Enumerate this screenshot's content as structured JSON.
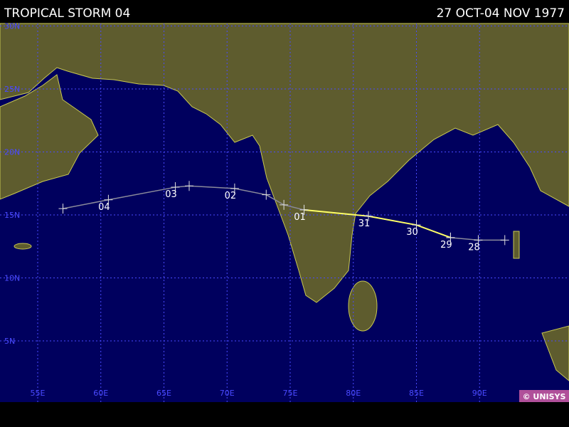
{
  "header": {
    "title": "TROPICAL STORM 04",
    "dates": "27 OCT-04 NOV 1977"
  },
  "map": {
    "lat_ticks": [
      {
        "value": 30,
        "label": "30N"
      },
      {
        "value": 25,
        "label": "25N"
      },
      {
        "value": 20,
        "label": "20N"
      },
      {
        "value": 15,
        "label": "15N"
      },
      {
        "value": 10,
        "label": "10N"
      },
      {
        "value": 5,
        "label": "5N"
      }
    ],
    "lon_ticks": [
      {
        "value": 55,
        "label": "55E"
      },
      {
        "value": 60,
        "label": "60E"
      },
      {
        "value": 65,
        "label": "65E"
      },
      {
        "value": 70,
        "label": "70E"
      },
      {
        "value": 75,
        "label": "75E"
      },
      {
        "value": 80,
        "label": "80E"
      },
      {
        "value": 85,
        "label": "85E"
      },
      {
        "value": 90,
        "label": "90E"
      }
    ],
    "track": [
      {
        "color": "#8a8a9a",
        "points": [
          {
            "lon": 92.0,
            "lat": 13.0
          },
          {
            "lon": 89.9,
            "lat": 13.0,
            "label": "28"
          },
          {
            "lon": 87.7,
            "lat": 13.2,
            "label": "29"
          }
        ]
      },
      {
        "color": "#ffff66",
        "points": [
          {
            "lon": 87.7,
            "lat": 13.2
          },
          {
            "lon": 85.0,
            "lat": 14.2,
            "label": "30"
          },
          {
            "lon": 81.2,
            "lat": 14.9,
            "label": "31"
          },
          {
            "lon": 76.1,
            "lat": 15.4,
            "label": "01"
          }
        ]
      },
      {
        "color": "#8a8a9a",
        "points": [
          {
            "lon": 76.1,
            "lat": 15.4
          },
          {
            "lon": 74.5,
            "lat": 15.8
          },
          {
            "lon": 73.1,
            "lat": 16.6
          },
          {
            "lon": 70.6,
            "lat": 17.1,
            "label": "02"
          },
          {
            "lon": 67.0,
            "lat": 17.3
          },
          {
            "lon": 65.9,
            "lat": 17.2,
            "label": "03"
          },
          {
            "lon": 60.6,
            "lat": 16.2,
            "label": "04"
          },
          {
            "lon": 57.0,
            "lat": 15.5
          }
        ]
      }
    ],
    "credit": "© UNISYS"
  }
}
